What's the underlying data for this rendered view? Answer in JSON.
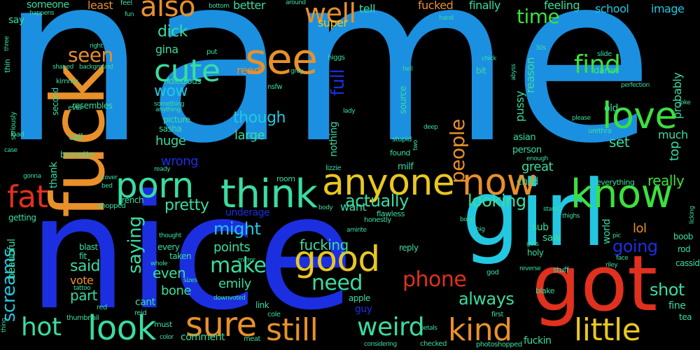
{
  "palette": {
    "blue": "#1b90e0",
    "deep_blue": "#1b2fe0",
    "orange": "#e8902a",
    "red": "#e0301e",
    "green": "#3ce03c",
    "cyan": "#22c8e0",
    "teal": "#3adca0",
    "yellow": "#e8c820"
  },
  "words": [
    {
      "text": "name",
      "color": "blue",
      "weight": 330
    },
    {
      "text": "nice",
      "color": "deep_blue",
      "weight": 225
    },
    {
      "text": "girl",
      "color": "cyan",
      "weight": 130
    },
    {
      "text": "got",
      "color": "red",
      "weight": 110
    },
    {
      "text": "fuck",
      "color": "orange",
      "weight": 105
    },
    {
      "text": "see",
      "color": "orange",
      "weight": 60
    },
    {
      "text": "anyone",
      "color": "yellow",
      "weight": 52
    },
    {
      "text": "now",
      "color": "orange",
      "weight": 52
    },
    {
      "text": "think",
      "color": "teal",
      "weight": 56
    },
    {
      "text": "porn",
      "color": "teal",
      "weight": 50
    },
    {
      "text": "know",
      "color": "green",
      "weight": 56
    },
    {
      "text": "love",
      "color": "green",
      "weight": 52
    },
    {
      "text": "good",
      "color": "yellow",
      "weight": 50
    },
    {
      "text": "look",
      "color": "teal",
      "weight": 48
    },
    {
      "text": "sure",
      "color": "orange",
      "weight": 48
    },
    {
      "text": "still",
      "color": "orange",
      "weight": 44
    },
    {
      "text": "little",
      "color": "yellow",
      "weight": 44
    },
    {
      "text": "kind",
      "color": "orange",
      "weight": 44
    },
    {
      "text": "cute",
      "color": "teal",
      "weight": 44
    },
    {
      "text": "fat",
      "color": "red",
      "weight": 44
    },
    {
      "text": "also",
      "color": "orange",
      "weight": 40
    },
    {
      "text": "well",
      "color": "orange",
      "weight": 38
    },
    {
      "text": "find",
      "color": "green",
      "weight": 36
    },
    {
      "text": "hot",
      "color": "teal",
      "weight": 36
    },
    {
      "text": "weird",
      "color": "teal",
      "weight": 36
    },
    {
      "text": "make",
      "color": "teal",
      "weight": 30
    },
    {
      "text": "need",
      "color": "teal",
      "weight": 30
    },
    {
      "text": "phone",
      "color": "red",
      "weight": 30
    },
    {
      "text": "seen",
      "color": "orange",
      "weight": 28
    },
    {
      "text": "people",
      "color": "orange",
      "weight": 28
    },
    {
      "text": "time",
      "color": "green",
      "weight": 28
    },
    {
      "text": "screams",
      "color": "cyan",
      "weight": 26
    },
    {
      "text": "saying",
      "color": "teal",
      "weight": 26
    },
    {
      "text": "full",
      "color": "deep_blue",
      "weight": 26
    },
    {
      "text": "might",
      "color": "cyan",
      "weight": 24
    },
    {
      "text": "actually",
      "color": "teal",
      "weight": 24
    },
    {
      "text": "looking",
      "color": "teal",
      "weight": 24
    },
    {
      "text": "though",
      "color": "cyan",
      "weight": 22
    },
    {
      "text": "going",
      "color": "deep_blue",
      "weight": 24
    },
    {
      "text": "always",
      "color": "teal",
      "weight": 24
    },
    {
      "text": "shot",
      "color": "teal",
      "weight": 24
    },
    {
      "text": "said",
      "color": "teal",
      "weight": 22
    },
    {
      "text": "wow",
      "color": "cyan",
      "weight": 22
    },
    {
      "text": "dick",
      "color": "teal",
      "weight": 22
    },
    {
      "text": "pretty",
      "color": "teal",
      "weight": 22
    },
    {
      "text": "really",
      "color": "green",
      "weight": 20
    },
    {
      "text": "part",
      "color": "teal",
      "weight": 20
    },
    {
      "text": "fucking",
      "color": "teal",
      "weight": 20
    },
    {
      "text": "even",
      "color": "teal",
      "weight": 20
    },
    {
      "text": "emily",
      "color": "teal",
      "weight": 18
    },
    {
      "text": "points",
      "color": "teal",
      "weight": 18
    },
    {
      "text": "bone",
      "color": "teal",
      "weight": 18
    },
    {
      "text": "large",
      "color": "teal",
      "weight": 18
    },
    {
      "text": "huge",
      "color": "teal",
      "weight": 18
    },
    {
      "text": "set",
      "color": "teal",
      "weight": 20
    },
    {
      "text": "lol",
      "color": "orange",
      "weight": 18
    },
    {
      "text": "top",
      "color": "teal",
      "weight": 18
    },
    {
      "text": "vote",
      "color": "orange",
      "weight": 16
    },
    {
      "text": "much",
      "color": "teal",
      "weight": 16
    },
    {
      "text": "great",
      "color": "teal",
      "weight": 18
    },
    {
      "text": "wrong",
      "color": "deep_blue",
      "weight": 18
    },
    {
      "text": "want",
      "color": "teal",
      "weight": 16
    },
    {
      "text": "read",
      "color": "orange",
      "weight": 16
    },
    {
      "text": "gina",
      "color": "teal",
      "weight": 16
    },
    {
      "text": "tell",
      "color": "teal",
      "weight": 16
    },
    {
      "text": "super",
      "color": "yellow",
      "weight": 16
    },
    {
      "text": "better",
      "color": "teal",
      "weight": 16
    },
    {
      "text": "least",
      "color": "orange",
      "weight": 16
    },
    {
      "text": "fucked",
      "color": "orange",
      "weight": 16
    },
    {
      "text": "finally",
      "color": "teal",
      "weight": 16
    },
    {
      "text": "feeling",
      "color": "teal",
      "weight": 16
    },
    {
      "text": "school",
      "color": "cyan",
      "weight": 16
    },
    {
      "text": "image",
      "color": "cyan",
      "weight": 16
    },
    {
      "text": "probably",
      "color": "teal",
      "weight": 16
    },
    {
      "text": "someone",
      "color": "teal",
      "weight": 14
    },
    {
      "text": "say",
      "color": "teal",
      "weight": 14
    },
    {
      "text": "reason",
      "color": "teal",
      "weight": 16
    },
    {
      "text": "nothing",
      "color": "teal",
      "weight": 14
    },
    {
      "text": "pussy",
      "color": "teal",
      "weight": 16
    },
    {
      "text": "sub",
      "color": "teal",
      "weight": 14
    },
    {
      "text": "saw",
      "color": "teal",
      "weight": 14
    },
    {
      "text": "world",
      "color": "teal",
      "weight": 14
    },
    {
      "text": "guy",
      "color": "deep_blue",
      "weight": 14
    },
    {
      "text": "fine",
      "color": "teal",
      "weight": 14
    },
    {
      "text": "fuckin",
      "color": "teal",
      "weight": 14
    },
    {
      "text": "beautiful",
      "color": "teal",
      "weight": 14
    },
    {
      "text": "comment",
      "color": "teal",
      "weight": 14
    },
    {
      "text": "cant",
      "color": "teal",
      "weight": 14
    },
    {
      "text": "underage",
      "color": "deep_blue",
      "weight": 14
    },
    {
      "text": "child",
      "color": "teal",
      "weight": 14
    },
    {
      "text": "thank",
      "color": "teal",
      "weight": 14
    },
    {
      "text": "old",
      "color": "teal",
      "weight": 14
    },
    {
      "text": "damn",
      "color": "teal",
      "weight": 13
    },
    {
      "text": "source",
      "color": "teal",
      "weight": 13
    },
    {
      "text": "milf",
      "color": "teal",
      "weight": 13
    },
    {
      "text": "person",
      "color": "teal",
      "weight": 13
    },
    {
      "text": "asian",
      "color": "teal",
      "weight": 13
    },
    {
      "text": "call",
      "color": "teal",
      "weight": 13
    },
    {
      "text": "brunette",
      "color": "teal",
      "weight": 12
    },
    {
      "text": "sasha",
      "color": "teal",
      "weight": 12
    },
    {
      "text": "picture",
      "color": "teal",
      "weight": 12
    },
    {
      "text": "blast",
      "color": "teal",
      "weight": 12
    },
    {
      "text": "fit",
      "color": "teal",
      "weight": 12
    },
    {
      "text": "every",
      "color": "teal",
      "weight": 12
    },
    {
      "text": "taken",
      "color": "teal",
      "weight": 12
    },
    {
      "text": "second",
      "color": "teal",
      "weight": 12
    },
    {
      "text": "resembles",
      "color": "teal",
      "weight": 12
    },
    {
      "text": "ridiculous",
      "color": "teal",
      "weight": 12
    },
    {
      "text": "reply",
      "color": "teal",
      "weight": 12
    },
    {
      "text": "bit",
      "color": "teal",
      "weight": 12
    },
    {
      "text": "holy",
      "color": "teal",
      "weight": 12
    },
    {
      "text": "boob",
      "color": "teal",
      "weight": 12
    },
    {
      "text": "rod",
      "color": "teal",
      "weight": 12
    },
    {
      "text": "cassidy",
      "color": "teal",
      "weight": 12
    },
    {
      "text": "tea",
      "color": "teal",
      "weight": 12
    },
    {
      "text": "link",
      "color": "teal",
      "weight": 12
    },
    {
      "text": "apple",
      "color": "teal",
      "weight": 12
    },
    {
      "text": "getting",
      "color": "teal",
      "weight": 12
    },
    {
      "text": "french",
      "color": "teal",
      "weight": 12
    },
    {
      "text": "everything",
      "color": "teal",
      "weight": 11
    },
    {
      "text": "stuff",
      "color": "teal",
      "weight": 11
    },
    {
      "text": "room",
      "color": "teal",
      "weight": 11
    },
    {
      "text": "blake",
      "color": "teal",
      "weight": 11
    },
    {
      "text": "shopped",
      "color": "teal",
      "weight": 10
    },
    {
      "text": "flawless",
      "color": "teal",
      "weight": 11
    },
    {
      "text": "honestly",
      "color": "teal",
      "weight": 10
    },
    {
      "text": "lizzie",
      "color": "teal",
      "weight": 10
    },
    {
      "text": "stupid",
      "color": "teal",
      "weight": 10
    },
    {
      "text": "found",
      "color": "teal",
      "weight": 11
    },
    {
      "text": "cole",
      "color": "teal",
      "weight": 10
    },
    {
      "text": "red",
      "color": "teal",
      "weight": 10
    },
    {
      "text": "reid",
      "color": "teal",
      "weight": 10
    },
    {
      "text": "thumbnail",
      "color": "teal",
      "weight": 10
    },
    {
      "text": "must",
      "color": "teal",
      "weight": 11
    },
    {
      "text": "god",
      "color": "teal",
      "weight": 10
    },
    {
      "text": "first",
      "color": "teal",
      "weight": 10
    },
    {
      "text": "checked",
      "color": "teal",
      "weight": 10
    },
    {
      "text": "photoshopped",
      "color": "teal",
      "weight": 10
    },
    {
      "text": "meat",
      "color": "teal",
      "weight": 10
    },
    {
      "text": "cover",
      "color": "teal",
      "weight": 9
    },
    {
      "text": "bed",
      "color": "teal",
      "weight": 9
    },
    {
      "text": "gonna",
      "color": "teal",
      "weight": 9
    },
    {
      "text": "load",
      "color": "teal",
      "weight": 10
    },
    {
      "text": "case",
      "color": "teal",
      "weight": 9
    },
    {
      "text": "seriously",
      "color": "teal",
      "weight": 10
    },
    {
      "text": "thin",
      "color": "teal",
      "weight": 11
    },
    {
      "text": "kimmy",
      "color": "teal",
      "weight": 10
    },
    {
      "text": "shaped",
      "color": "teal",
      "weight": 9
    },
    {
      "text": "background",
      "color": "teal",
      "weight": 9
    },
    {
      "text": "right",
      "color": "teal",
      "weight": 9
    },
    {
      "text": "fun",
      "color": "teal",
      "weight": 9
    },
    {
      "text": "feel",
      "color": "teal",
      "weight": 10
    },
    {
      "text": "happens",
      "color": "teal",
      "weight": 9
    },
    {
      "text": "bottom",
      "color": "teal",
      "weight": 9
    },
    {
      "text": "around",
      "color": "teal",
      "weight": 9
    },
    {
      "text": "higgs",
      "color": "teal",
      "weight": 10
    },
    {
      "text": "hand",
      "color": "teal",
      "weight": 9
    },
    {
      "text": "chick",
      "color": "teal",
      "weight": 9
    },
    {
      "text": "30s",
      "color": "teal",
      "weight": 9
    },
    {
      "text": "hell",
      "color": "teal",
      "weight": 9
    },
    {
      "text": "abyss",
      "color": "teal",
      "weight": 9
    },
    {
      "text": "slide",
      "color": "teal",
      "weight": 10
    },
    {
      "text": "perfection",
      "color": "teal",
      "weight": 9
    },
    {
      "text": "joke",
      "color": "teal",
      "weight": 9
    },
    {
      "text": "please",
      "color": "teal",
      "weight": 9
    },
    {
      "text": "urethra",
      "color": "teal",
      "weight": 10
    },
    {
      "text": "enough",
      "color": "teal",
      "weight": 9
    },
    {
      "text": "deep",
      "color": "teal",
      "weight": 9
    },
    {
      "text": "two",
      "color": "teal",
      "weight": 9
    },
    {
      "text": "lady",
      "color": "teal",
      "weight": 9
    },
    {
      "text": "grey",
      "color": "teal",
      "weight": 9
    },
    {
      "text": "put",
      "color": "teal",
      "weight": 10
    },
    {
      "text": "nsfw",
      "color": "teal",
      "weight": 10
    },
    {
      "text": "ever",
      "color": "teal",
      "weight": 10
    },
    {
      "text": "something",
      "color": "teal",
      "weight": 9
    },
    {
      "text": "anything",
      "color": "teal",
      "weight": 9
    },
    {
      "text": "ready",
      "color": "teal",
      "weight": 9
    },
    {
      "text": "thought",
      "color": "teal",
      "weight": 9
    },
    {
      "text": "whole",
      "color": "teal",
      "weight": 9
    },
    {
      "text": "sizes",
      "color": "teal",
      "weight": 9
    },
    {
      "text": "mirror",
      "color": "teal",
      "weight": 9
    },
    {
      "text": "downvoted",
      "color": "teal",
      "weight": 9
    },
    {
      "text": "tattoo",
      "color": "teal",
      "weight": 9
    },
    {
      "text": "color",
      "color": "teal",
      "weight": 9
    },
    {
      "text": "considering",
      "color": "teal",
      "weight": 9
    },
    {
      "text": "amirite",
      "color": "teal",
      "weight": 9
    },
    {
      "text": "body",
      "color": "teal",
      "weight": 9
    },
    {
      "text": "big",
      "color": "teal",
      "weight": 9
    },
    {
      "text": "bond",
      "color": "teal",
      "weight": 9
    },
    {
      "text": "petals",
      "color": "teal",
      "weight": 9
    },
    {
      "text": "reverse",
      "color": "teal",
      "weight": 9
    },
    {
      "text": "riley",
      "color": "teal",
      "weight": 9
    },
    {
      "text": "face",
      "color": "teal",
      "weight": 9
    },
    {
      "text": "pic",
      "color": "teal",
      "weight": 9
    },
    {
      "text": "gets",
      "color": "teal",
      "weight": 9
    },
    {
      "text": "thighs",
      "color": "teal",
      "weight": 9
    },
    {
      "text": "licking",
      "color": "teal",
      "weight": 9
    },
    {
      "text": "stand",
      "color": "teal",
      "weight": 9
    },
    {
      "text": "three",
      "color": "teal",
      "weight": 9
    },
    {
      "text": "thing",
      "color": "teal",
      "weight": 9
    }
  ]
}
